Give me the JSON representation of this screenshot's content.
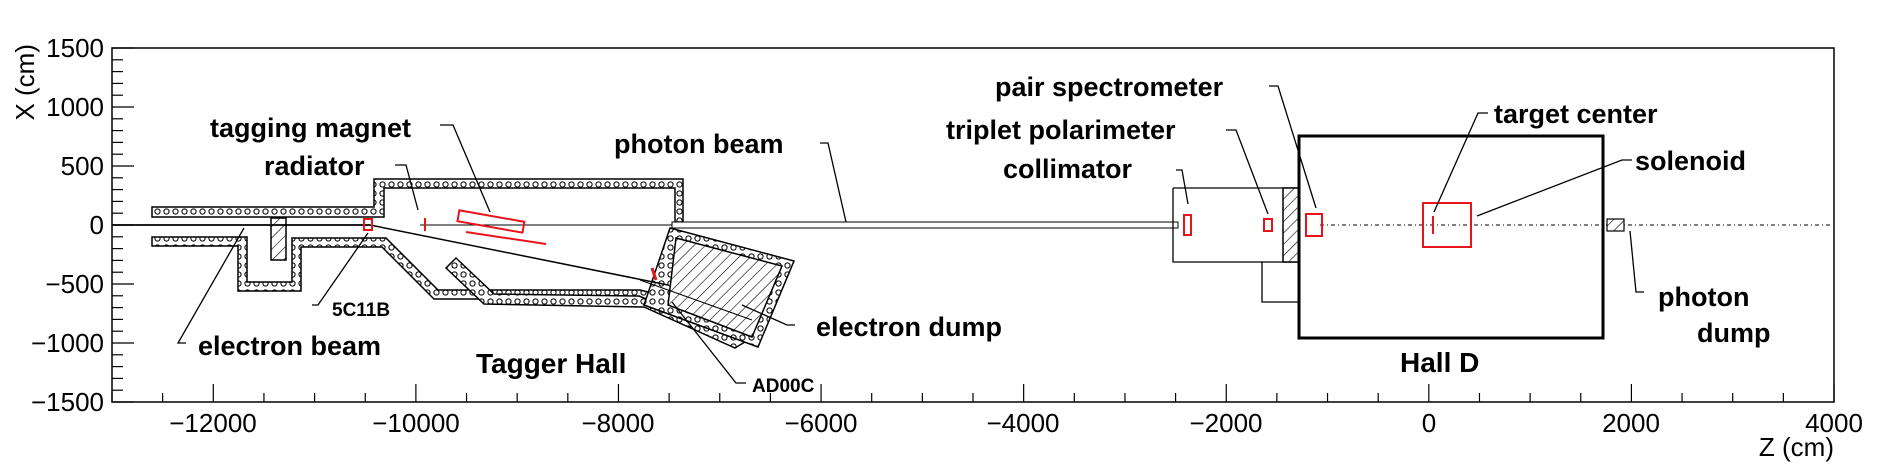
{
  "axes": {
    "x_label": "Z (cm)",
    "y_label": "X (cm)",
    "x_ticks": [
      "−12000",
      "−10000",
      "−8000",
      "−6000",
      "−4000",
      "−2000",
      "0",
      "2000",
      "4000"
    ],
    "y_ticks": [
      "1500",
      "1000",
      "500",
      "0",
      "−500",
      "−1000",
      "−1500"
    ],
    "x_range": [
      -13000,
      4000
    ],
    "y_range": [
      -1500,
      1500
    ]
  },
  "labels": {
    "tagging_magnet": "tagging magnet",
    "radiator": "radiator",
    "photon_beam_top": "photon beam",
    "pair_spectrometer": "pair spectrometer",
    "triplet_polarimeter": "triplet polarimeter",
    "collimator": "collimator",
    "target_center": "target center",
    "solenoid": "solenoid",
    "photon_dump": "photon",
    "photon_dump_2": "dump",
    "electron_dump": "electron dump",
    "electron_beam": "electron beam",
    "tagger_hall": "Tagger Hall",
    "hall_d": "Hall D",
    "c5c11b": "5C11B",
    "ad00c": "AD00C"
  },
  "colors": {
    "highlight": "#e8141c",
    "line": "#000000"
  }
}
